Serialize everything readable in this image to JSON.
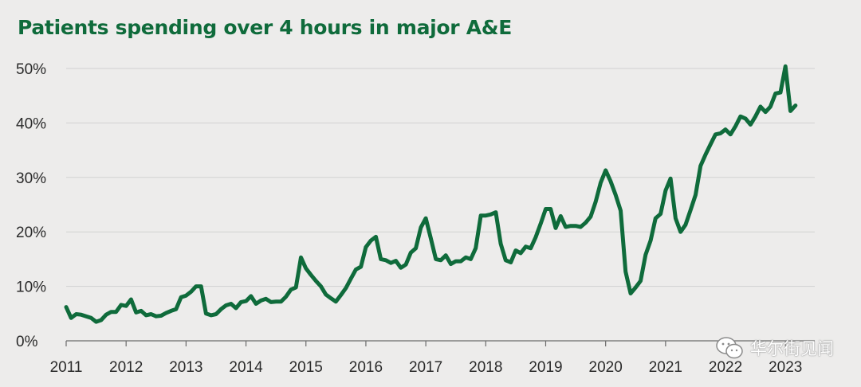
{
  "chart_data": {
    "type": "line",
    "title": "Patients spending over 4 hours in major A&E",
    "xlabel": "",
    "ylabel": "",
    "xlim": [
      2011.0,
      2023.25
    ],
    "ylim": [
      0,
      50
    ],
    "grid": true,
    "colors": {
      "series": "#0f6b3b",
      "title": "#0f6b3b",
      "grid": "#d1d1d1",
      "background": "#edeceb"
    },
    "y_ticks": [
      {
        "value": 0,
        "label": "0%"
      },
      {
        "value": 10,
        "label": "10%"
      },
      {
        "value": 20,
        "label": "20%"
      },
      {
        "value": 30,
        "label": "30%"
      },
      {
        "value": 40,
        "label": "40%"
      },
      {
        "value": 50,
        "label": "50%"
      }
    ],
    "x_ticks": [
      {
        "value": 2011,
        "label": "2011"
      },
      {
        "value": 2012,
        "label": "2012"
      },
      {
        "value": 2013,
        "label": "2013"
      },
      {
        "value": 2014,
        "label": "2014"
      },
      {
        "value": 2015,
        "label": "2015"
      },
      {
        "value": 2016,
        "label": "2016"
      },
      {
        "value": 2017,
        "label": "2017"
      },
      {
        "value": 2018,
        "label": "2018"
      },
      {
        "value": 2019,
        "label": "2019"
      },
      {
        "value": 2020,
        "label": "2020"
      },
      {
        "value": 2021,
        "label": "2021"
      },
      {
        "value": 2022,
        "label": "2022"
      },
      {
        "value": 2023,
        "label": "2023"
      }
    ],
    "series": [
      {
        "name": "Patients spending over 4 hours",
        "x": [
          2011.0,
          2011.083,
          2011.167,
          2011.25,
          2011.333,
          2011.417,
          2011.5,
          2011.583,
          2011.667,
          2011.75,
          2011.833,
          2011.917,
          2012.0,
          2012.083,
          2012.167,
          2012.25,
          2012.333,
          2012.417,
          2012.5,
          2012.583,
          2012.667,
          2012.75,
          2012.833,
          2012.917,
          2013.0,
          2013.083,
          2013.167,
          2013.25,
          2013.333,
          2013.417,
          2013.5,
          2013.583,
          2013.667,
          2013.75,
          2013.833,
          2013.917,
          2014.0,
          2014.083,
          2014.167,
          2014.25,
          2014.333,
          2014.417,
          2014.5,
          2014.583,
          2014.667,
          2014.75,
          2014.833,
          2014.917,
          2015.0,
          2015.083,
          2015.167,
          2015.25,
          2015.333,
          2015.417,
          2015.5,
          2015.583,
          2015.667,
          2015.75,
          2015.833,
          2015.917,
          2016.0,
          2016.083,
          2016.167,
          2016.25,
          2016.333,
          2016.417,
          2016.5,
          2016.583,
          2016.667,
          2016.75,
          2016.833,
          2016.917,
          2017.0,
          2017.083,
          2017.167,
          2017.25,
          2017.333,
          2017.417,
          2017.5,
          2017.583,
          2017.667,
          2017.75,
          2017.833,
          2017.917,
          2018.0,
          2018.083,
          2018.167,
          2018.25,
          2018.333,
          2018.417,
          2018.5,
          2018.583,
          2018.667,
          2018.75,
          2018.833,
          2018.917,
          2019.0,
          2019.083,
          2019.167,
          2019.25,
          2019.333,
          2019.417,
          2019.5,
          2019.583,
          2019.667,
          2019.75,
          2019.833,
          2019.917,
          2020.0,
          2020.083,
          2020.167,
          2020.25,
          2020.333,
          2020.417,
          2020.5,
          2020.583,
          2020.667,
          2020.75,
          2020.833,
          2020.917,
          2021.0,
          2021.083,
          2021.167,
          2021.25,
          2021.333,
          2021.417,
          2021.5,
          2021.583,
          2021.667,
          2021.75,
          2021.833,
          2021.917,
          2022.0,
          2022.083,
          2022.167,
          2022.25,
          2022.333,
          2022.417,
          2022.5,
          2022.583,
          2022.667,
          2022.75,
          2022.833,
          2022.917,
          2023.0,
          2023.083,
          2023.167
        ],
        "values": [
          6.2,
          4.2,
          4.9,
          4.8,
          4.5,
          4.2,
          3.5,
          3.8,
          4.8,
          5.3,
          5.3,
          6.6,
          6.4,
          7.6,
          5.2,
          5.5,
          4.7,
          4.9,
          4.5,
          4.6,
          5.1,
          5.5,
          5.8,
          8.0,
          8.3,
          9.0,
          10.0,
          10.0,
          5.0,
          4.7,
          4.9,
          5.8,
          6.5,
          6.8,
          6.0,
          7.1,
          7.3,
          8.2,
          6.8,
          7.4,
          7.7,
          7.1,
          7.2,
          7.2,
          8.1,
          9.4,
          9.8,
          15.3,
          13.3,
          12.1,
          11.0,
          10.0,
          8.5,
          7.8,
          7.2,
          8.4,
          9.7,
          11.4,
          13.1,
          13.6,
          17.2,
          18.4,
          19.1,
          15.0,
          14.8,
          14.3,
          14.7,
          13.4,
          14.0,
          16.2,
          17.0,
          20.8,
          22.5,
          18.8,
          15.0,
          14.8,
          15.7,
          14.1,
          14.6,
          14.6,
          15.3,
          15.0,
          17.0,
          23.0,
          23.0,
          23.2,
          23.6,
          17.8,
          14.8,
          14.4,
          16.6,
          16.1,
          17.3,
          17.0,
          19.0,
          21.5,
          24.2,
          24.2,
          20.7,
          22.9,
          20.9,
          21.1,
          21.1,
          20.9,
          21.7,
          22.8,
          25.5,
          29.0,
          31.3,
          29.3,
          26.8,
          23.9,
          12.7,
          8.7,
          9.8,
          11.0,
          15.8,
          18.4,
          22.5,
          23.3,
          27.6,
          29.8,
          22.5,
          20.0,
          21.3,
          24.0,
          26.8,
          32.1,
          34.2,
          36.1,
          37.9,
          38.1,
          38.8,
          37.9,
          39.4,
          41.2,
          40.8,
          39.7,
          41.2,
          43.0,
          42.0,
          43.0,
          45.4,
          45.6,
          50.4,
          42.2,
          43.2
        ]
      }
    ]
  },
  "watermark": {
    "text": "华尔街见闻",
    "icon": "wechat-icon"
  }
}
